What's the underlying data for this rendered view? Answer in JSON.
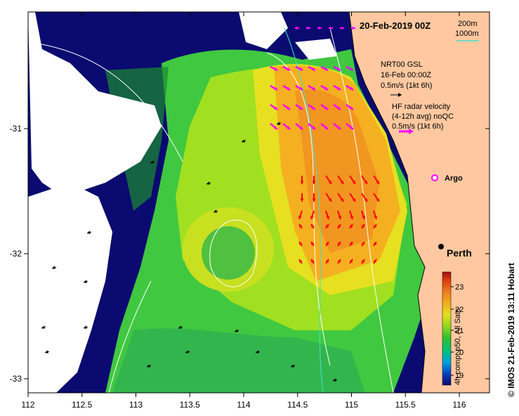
{
  "map": {
    "date_label": "20-Feb-2019 00Z",
    "depth_legend": {
      "line1": "200m",
      "line2": "1000m",
      "color_1000m": "#40e0d0"
    },
    "model_legend": {
      "line1": "NRT00 GSL",
      "line2": "16-Feb 00:00Z",
      "line3": "0.5m/s (1kt 6h)",
      "arrow_color": "#000000"
    },
    "radar_legend": {
      "line1": "HF radar velocity",
      "line2": "(4-12h avg) noQC",
      "line3": "0.5m/s (1kt 6h)",
      "arrow_color": "#ff00ff"
    },
    "argo_label": "Argo",
    "city_label": "Perth",
    "credit": "© IMOS 21-Feb-2019 13:11 Hobart",
    "colorbar": {
      "label": "4h comp, p50, All Sats",
      "ticks": [
        "23",
        "22",
        "21",
        "20",
        "19"
      ],
      "colors": [
        "#0a0a6e",
        "#0040c0",
        "#00a0e0",
        "#00c080",
        "#30c030",
        "#90d820",
        "#e0e020",
        "#f0b020",
        "#f08020",
        "#e04010",
        "#a01010"
      ]
    },
    "x_ticks": [
      "112",
      "112.5",
      "113",
      "113.5",
      "114",
      "114.5",
      "115",
      "115.5",
      "116"
    ],
    "y_ticks": [
      "-31",
      "-32",
      "-33"
    ],
    "colors": {
      "land": "#ffc8a0",
      "cloud": "#ffffff",
      "radar_arrow": "#ff00ff",
      "red_arrow": "#ff0000",
      "coast": "#000000"
    }
  }
}
